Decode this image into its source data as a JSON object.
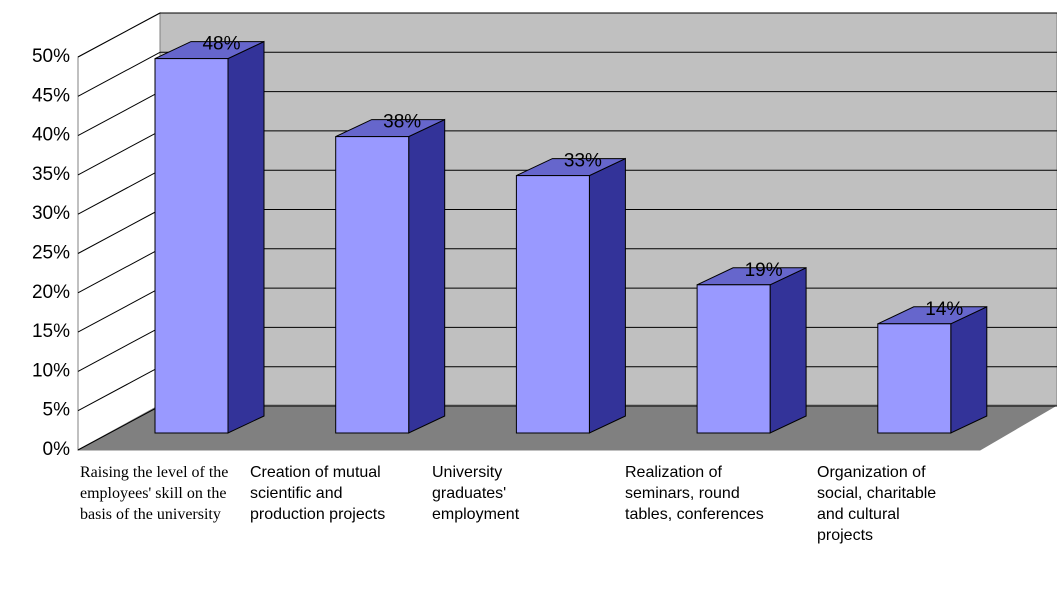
{
  "chart_data": {
    "type": "bar3d",
    "categories": [
      "Raising the level of the employees' skill on the basis of the university",
      "Creation of mutual scientific and production projects",
      "University graduates' employment",
      "Realization of seminars, round tables, conferences",
      "Organization of social, charitable and cultural projects"
    ],
    "values": [
      48,
      38,
      33,
      19,
      14
    ],
    "value_labels": [
      "48%",
      "38%",
      "33%",
      "19%",
      "14%"
    ],
    "color": "#9999ff",
    "ylim": [
      0,
      50
    ],
    "yticks": [
      {
        "value": 0,
        "label": "0%"
      },
      {
        "value": 5,
        "label": "5%"
      },
      {
        "value": 10,
        "label": "10%"
      },
      {
        "value": 15,
        "label": "15%"
      },
      {
        "value": 20,
        "label": "20%"
      },
      {
        "value": 25,
        "label": "25%"
      },
      {
        "value": 30,
        "label": "30%"
      },
      {
        "value": 35,
        "label": "35%"
      },
      {
        "value": 40,
        "label": "40%"
      },
      {
        "value": 45,
        "label": "45%"
      },
      {
        "value": 50,
        "label": "50%"
      }
    ],
    "grid": true
  }
}
